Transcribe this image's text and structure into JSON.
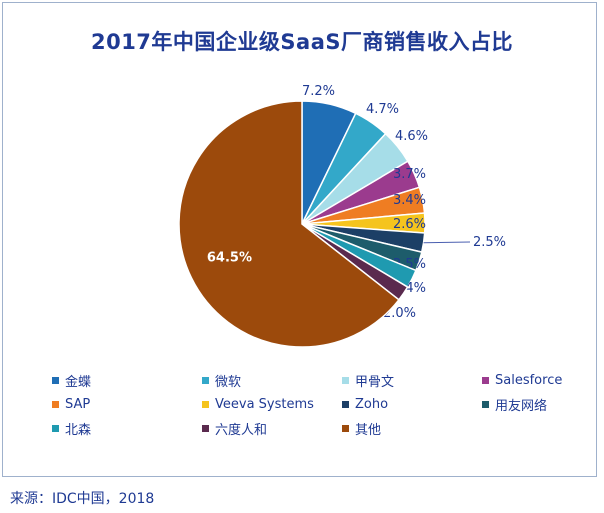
{
  "title": "2017年中国企业级SaaS厂商销售收入占比",
  "source": "来源：IDC中国，2018",
  "chart_data": {
    "type": "pie",
    "title": "2017年中国企业级SaaS厂商销售收入占比",
    "legend_position": "bottom",
    "slices": [
      {
        "name": "金蝶",
        "value": 7.2,
        "label": "7.2%",
        "color": "#1f6eb5"
      },
      {
        "name": "微软",
        "value": 4.7,
        "label": "4.7%",
        "color": "#33a8c9"
      },
      {
        "name": "甲骨文",
        "value": 4.6,
        "label": "4.6%",
        "color": "#a6dde8"
      },
      {
        "name": "Salesforce",
        "value": 3.7,
        "label": "3.7%",
        "color": "#9b3b8e"
      },
      {
        "name": "SAP",
        "value": 3.4,
        "label": "3.4%",
        "color": "#ef7d22"
      },
      {
        "name": "Veeva Systems",
        "value": 2.6,
        "label": "2.6%",
        "color": "#f5c41e"
      },
      {
        "name": "Zoho",
        "value": 2.5,
        "label": "2.5%",
        "color": "#1c3f66"
      },
      {
        "name": "用友网络",
        "value": 2.5,
        "label": "2.5%",
        "color": "#1d5c6b"
      },
      {
        "name": "北森",
        "value": 2.4,
        "label": "2.4%",
        "color": "#1f9ab0"
      },
      {
        "name": "六度人和",
        "value": 2.0,
        "label": "2.0%",
        "color": "#5a2a4e"
      },
      {
        "name": "其他",
        "value": 64.5,
        "label": "64.5%",
        "color": "#9c4a0c"
      }
    ]
  }
}
